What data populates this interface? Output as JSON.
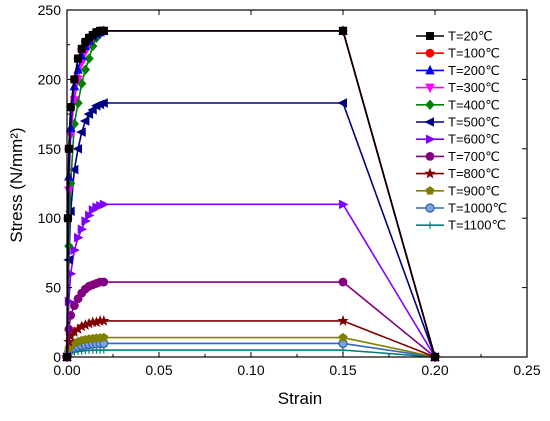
{
  "chart_data": {
    "type": "line",
    "xlabel": "Strain",
    "ylabel": "Stress (N/mm²)",
    "xlim": [
      0,
      0.25
    ],
    "ylim": [
      0,
      250
    ],
    "x_ticks": [
      "0.00",
      "0.05",
      "0.10",
      "0.15",
      "0.20",
      "0.25"
    ],
    "y_ticks": [
      "0",
      "50",
      "100",
      "150",
      "200",
      "250"
    ],
    "grid": false,
    "legend_position": "right",
    "series": [
      {
        "name": "T=20℃",
        "color": "#000000",
        "marker": "square",
        "points": [
          [
            0,
            0
          ],
          [
            0.0005,
            100
          ],
          [
            0.001,
            150
          ],
          [
            0.002,
            180
          ],
          [
            0.004,
            200
          ],
          [
            0.006,
            215
          ],
          [
            0.008,
            222
          ],
          [
            0.01,
            227
          ],
          [
            0.012,
            230
          ],
          [
            0.014,
            232
          ],
          [
            0.016,
            234
          ],
          [
            0.018,
            235
          ],
          [
            0.02,
            235
          ],
          [
            0.15,
            235
          ],
          [
            0.2,
            0
          ]
        ]
      },
      {
        "name": "T=100℃",
        "color": "#ff0000",
        "marker": "circle",
        "points": [
          [
            0,
            0
          ],
          [
            0.0005,
            100
          ],
          [
            0.001,
            150
          ],
          [
            0.002,
            180
          ],
          [
            0.004,
            200
          ],
          [
            0.006,
            215
          ],
          [
            0.008,
            222
          ],
          [
            0.01,
            227
          ],
          [
            0.012,
            230
          ],
          [
            0.014,
            232
          ],
          [
            0.016,
            234
          ],
          [
            0.018,
            235
          ],
          [
            0.02,
            235
          ],
          [
            0.15,
            235
          ],
          [
            0.2,
            0
          ]
        ]
      },
      {
        "name": "T=200℃",
        "color": "#0000ff",
        "marker": "triangle-up",
        "points": [
          [
            0,
            0
          ],
          [
            0.001,
            130
          ],
          [
            0.002,
            165
          ],
          [
            0.004,
            195
          ],
          [
            0.006,
            207
          ],
          [
            0.008,
            217
          ],
          [
            0.01,
            224
          ],
          [
            0.012,
            228
          ],
          [
            0.014,
            231
          ],
          [
            0.016,
            233
          ],
          [
            0.018,
            234
          ],
          [
            0.02,
            235
          ],
          [
            0.15,
            235
          ],
          [
            0.2,
            0
          ]
        ]
      },
      {
        "name": "T=300℃",
        "color": "#ff00ff",
        "marker": "triangle-down",
        "points": [
          [
            0,
            0
          ],
          [
            0.001,
            120
          ],
          [
            0.002,
            160
          ],
          [
            0.004,
            185
          ],
          [
            0.006,
            200
          ],
          [
            0.008,
            212
          ],
          [
            0.01,
            220
          ],
          [
            0.012,
            226
          ],
          [
            0.014,
            230
          ],
          [
            0.016,
            233
          ],
          [
            0.018,
            234
          ],
          [
            0.02,
            235
          ],
          [
            0.15,
            235
          ],
          [
            0.2,
            0
          ]
        ]
      },
      {
        "name": "T=400℃",
        "color": "#008000",
        "marker": "diamond",
        "points": [
          [
            0,
            0
          ],
          [
            0.001,
            80
          ],
          [
            0.002,
            125
          ],
          [
            0.004,
            168
          ],
          [
            0.006,
            183
          ],
          [
            0.008,
            197
          ],
          [
            0.01,
            207
          ],
          [
            0.012,
            215
          ],
          [
            0.014,
            224
          ],
          [
            0.016,
            230
          ],
          [
            0.018,
            233
          ],
          [
            0.02,
            235
          ],
          [
            0.15,
            235
          ],
          [
            0.2,
            0
          ]
        ]
      },
      {
        "name": "T=500℃",
        "color": "#000080",
        "marker": "triangle-left",
        "points": [
          [
            0,
            0
          ],
          [
            0.001,
            70
          ],
          [
            0.002,
            105
          ],
          [
            0.004,
            135
          ],
          [
            0.006,
            150
          ],
          [
            0.008,
            162
          ],
          [
            0.01,
            170
          ],
          [
            0.012,
            175
          ],
          [
            0.014,
            178
          ],
          [
            0.016,
            181
          ],
          [
            0.018,
            182
          ],
          [
            0.02,
            183
          ],
          [
            0.15,
            183
          ],
          [
            0.2,
            0
          ]
        ]
      },
      {
        "name": "T=600℃",
        "color": "#8000ff",
        "marker": "triangle-right",
        "points": [
          [
            0,
            0
          ],
          [
            0.001,
            40
          ],
          [
            0.002,
            60
          ],
          [
            0.004,
            77
          ],
          [
            0.006,
            86
          ],
          [
            0.008,
            92
          ],
          [
            0.01,
            98
          ],
          [
            0.012,
            102
          ],
          [
            0.014,
            106
          ],
          [
            0.016,
            108
          ],
          [
            0.018,
            109
          ],
          [
            0.02,
            110
          ],
          [
            0.15,
            110
          ],
          [
            0.2,
            0
          ]
        ]
      },
      {
        "name": "T=700℃",
        "color": "#800080",
        "marker": "circle",
        "points": [
          [
            0,
            0
          ],
          [
            0.001,
            20
          ],
          [
            0.002,
            30
          ],
          [
            0.004,
            37
          ],
          [
            0.006,
            42
          ],
          [
            0.008,
            46
          ],
          [
            0.01,
            49
          ],
          [
            0.012,
            51
          ],
          [
            0.014,
            52
          ],
          [
            0.016,
            53
          ],
          [
            0.018,
            54
          ],
          [
            0.02,
            54
          ],
          [
            0.15,
            54
          ],
          [
            0.2,
            0
          ]
        ]
      },
      {
        "name": "T=800℃",
        "color": "#800000",
        "marker": "star",
        "points": [
          [
            0,
            0
          ],
          [
            0.001,
            11
          ],
          [
            0.002,
            15
          ],
          [
            0.004,
            18
          ],
          [
            0.006,
            20
          ],
          [
            0.008,
            22
          ],
          [
            0.01,
            23
          ],
          [
            0.012,
            24
          ],
          [
            0.014,
            25
          ],
          [
            0.016,
            25
          ],
          [
            0.018,
            26
          ],
          [
            0.02,
            26
          ],
          [
            0.15,
            26
          ],
          [
            0.2,
            0
          ]
        ]
      },
      {
        "name": "T=900℃",
        "color": "#808000",
        "marker": "pentagon",
        "points": [
          [
            0,
            0
          ],
          [
            0.001,
            6
          ],
          [
            0.002,
            8
          ],
          [
            0.004,
            10
          ],
          [
            0.006,
            11
          ],
          [
            0.008,
            12
          ],
          [
            0.01,
            12.5
          ],
          [
            0.012,
            13
          ],
          [
            0.014,
            13.3
          ],
          [
            0.016,
            13.6
          ],
          [
            0.018,
            13.8
          ],
          [
            0.02,
            14
          ],
          [
            0.15,
            14
          ],
          [
            0.2,
            0
          ]
        ]
      },
      {
        "name": "T=1000℃",
        "color": "#3366bb",
        "marker": "sphere",
        "points": [
          [
            0,
            0
          ],
          [
            0.001,
            4
          ],
          [
            0.002,
            5.5
          ],
          [
            0.004,
            6.8
          ],
          [
            0.006,
            7.6
          ],
          [
            0.008,
            8.2
          ],
          [
            0.01,
            8.6
          ],
          [
            0.012,
            9
          ],
          [
            0.014,
            9.3
          ],
          [
            0.016,
            9.5
          ],
          [
            0.018,
            9.7
          ],
          [
            0.02,
            9.8
          ],
          [
            0.15,
            9.8
          ],
          [
            0.2,
            0
          ]
        ]
      },
      {
        "name": "T=1100℃",
        "color": "#008080",
        "marker": "plus",
        "points": [
          [
            0,
            0
          ],
          [
            0.001,
            2
          ],
          [
            0.002,
            2.8
          ],
          [
            0.004,
            3.5
          ],
          [
            0.006,
            4
          ],
          [
            0.008,
            4.3
          ],
          [
            0.01,
            4.6
          ],
          [
            0.012,
            4.8
          ],
          [
            0.014,
            4.9
          ],
          [
            0.016,
            5
          ],
          [
            0.018,
            5
          ],
          [
            0.02,
            5
          ],
          [
            0.15,
            5
          ],
          [
            0.2,
            0
          ]
        ]
      }
    ]
  }
}
